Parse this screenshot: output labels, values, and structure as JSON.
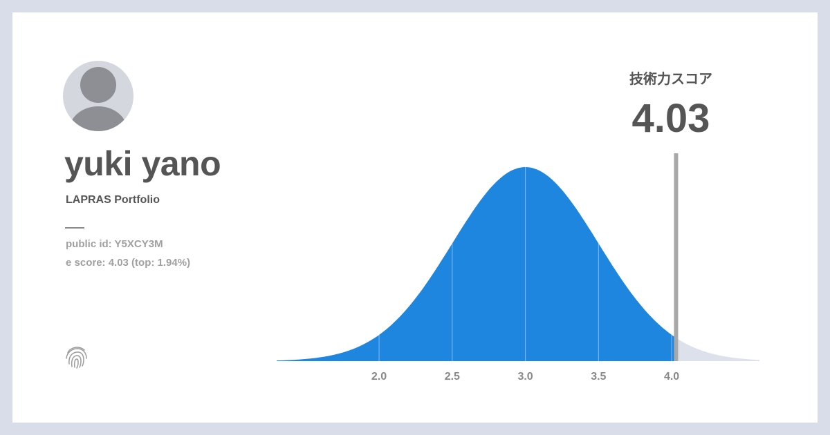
{
  "profile": {
    "name": "yuki yano",
    "subtitle": "LAPRAS Portfolio",
    "public_id": "public id: Y5XCY3M",
    "e_score": "e score: 4.03 (top: 1.94%)"
  },
  "score": {
    "label": "技術力スコア",
    "value": "4.03"
  },
  "icons": {
    "avatar": "user-avatar-icon",
    "brand": "fingerprint-icon"
  },
  "chart_data": {
    "type": "area",
    "distribution": "normal",
    "mean": 3.0,
    "std": 0.5,
    "xlim": [
      1.3,
      4.6
    ],
    "x_ticks": [
      2.0,
      2.5,
      3.0,
      3.5,
      4.0
    ],
    "marker": 4.03,
    "colors": {
      "filled": "#1f86e0",
      "unfilled": "#dde1ec",
      "marker": "#a8a8a8",
      "tick_label": "#888888",
      "grid_line": "#ffffff"
    }
  }
}
